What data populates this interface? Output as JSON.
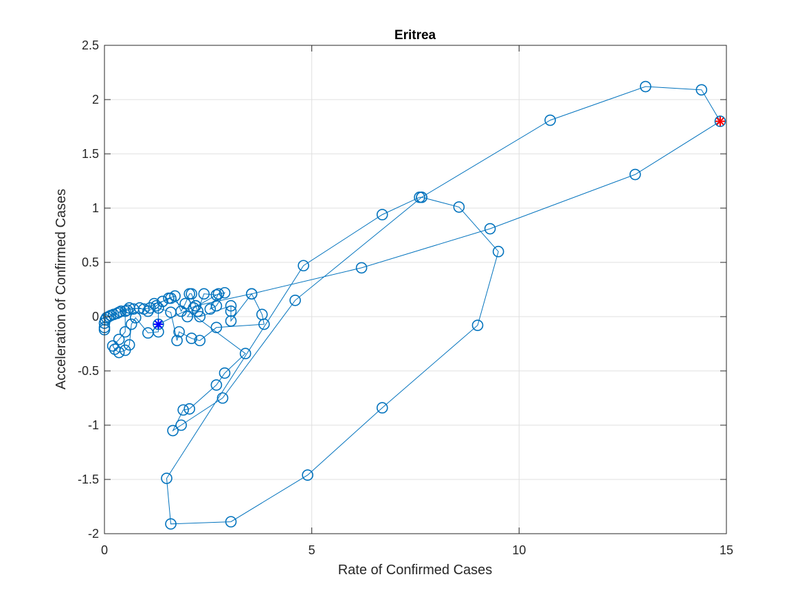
{
  "chart_data": {
    "type": "line",
    "title": "Eritrea",
    "xlabel": "Rate of Confirmed Cases",
    "ylabel": "Acceleration of Confirmed Cases",
    "xlim": [
      0,
      15
    ],
    "ylim": [
      -2,
      2.5
    ],
    "xticks": [
      0,
      5,
      10,
      15
    ],
    "xtick_labels": [
      "0",
      "5",
      "10",
      "15"
    ],
    "yticks": [
      -2,
      -1.5,
      -1,
      -0.5,
      0,
      0.5,
      1,
      1.5,
      2,
      2.5
    ],
    "ytick_labels": [
      "-2",
      "-1.5",
      "-1",
      "-0.5",
      "0",
      "0.5",
      "1",
      "1.5",
      "2",
      "2.5"
    ],
    "grid": true,
    "legend": "none",
    "series": [
      {
        "marker": "circle",
        "color": "#0072BD",
        "points": [
          [
            0,
            -0.12
          ],
          [
            0,
            -0.1
          ],
          [
            0,
            -0.06
          ],
          [
            0.02,
            -0.03
          ],
          [
            0.05,
            -0.01
          ],
          [
            0.1,
            0
          ],
          [
            0.15,
            0.01
          ],
          [
            0.22,
            0.02
          ],
          [
            0.3,
            0.03
          ],
          [
            0.4,
            0.05
          ],
          [
            0.55,
            0.06
          ],
          [
            0.7,
            0.07
          ],
          [
            0.85,
            0.08
          ],
          [
            1.05,
            0.05
          ],
          [
            1.25,
            0.1
          ],
          [
            1.4,
            0.14
          ],
          [
            1.55,
            0.17
          ],
          [
            1.7,
            0.19
          ],
          [
            1.85,
            0.05
          ],
          [
            1.95,
            0.12
          ],
          [
            2.05,
            0.21
          ],
          [
            2.1,
            0.21
          ],
          [
            2.2,
            0.1
          ],
          [
            2.25,
            0.05
          ],
          [
            2.4,
            0.21
          ],
          [
            2.7,
            0.2
          ],
          [
            2.9,
            0.22
          ],
          [
            2.7,
            0.1
          ],
          [
            2.55,
            0.07
          ],
          [
            2.75,
            0.21
          ],
          [
            2.15,
            0.08
          ],
          [
            2.0,
            0.0
          ],
          [
            2.3,
            0.0
          ],
          [
            3.05,
            0.1
          ],
          [
            3.05,
            0.05
          ],
          [
            3.05,
            -0.04
          ],
          [
            3.55,
            0.21
          ],
          [
            3.8,
            0.02
          ],
          [
            3.85,
            -0.07
          ],
          [
            2.7,
            -0.1
          ],
          [
            2.3,
            -0.22
          ],
          [
            2.1,
            -0.2
          ],
          [
            1.8,
            -0.14
          ],
          [
            1.75,
            -0.22
          ],
          [
            1.6,
            0.04
          ],
          [
            1.3,
            0.08
          ],
          [
            1.3,
            -0.14
          ],
          [
            1.05,
            -0.15
          ],
          [
            0.75,
            -0.01
          ],
          [
            0.65,
            -0.07
          ],
          [
            0.6,
            -0.26
          ],
          [
            0.5,
            -0.31
          ],
          [
            0.35,
            -0.33
          ],
          [
            0.25,
            -0.3
          ],
          [
            0.2,
            -0.27
          ],
          [
            0.35,
            -0.21
          ],
          [
            0.5,
            -0.14
          ],
          [
            0.5,
            0.05
          ],
          [
            0.35,
            0.04
          ],
          [
            0.6,
            0.08
          ],
          [
            0.95,
            0.07
          ],
          [
            1.1,
            0.08
          ],
          [
            1.2,
            0.12
          ],
          [
            1.4,
            0.14
          ],
          [
            1.6,
            0.17
          ],
          [
            3.4,
            -0.34
          ],
          [
            2.9,
            -0.52
          ],
          [
            2.7,
            -0.63
          ],
          [
            2.05,
            -0.85
          ],
          [
            1.9,
            -0.86
          ],
          [
            1.65,
            -1.05
          ],
          [
            1.85,
            -1.0
          ],
          [
            2.85,
            -0.75
          ],
          [
            4.6,
            0.15
          ],
          [
            7.65,
            1.1
          ],
          [
            7.6,
            1.1
          ],
          [
            6.7,
            0.94
          ],
          [
            4.8,
            0.47
          ],
          [
            1.5,
            -1.49
          ],
          [
            1.6,
            -1.91
          ],
          [
            3.05,
            -1.89
          ],
          [
            4.9,
            -1.46
          ],
          [
            6.7,
            -0.84
          ],
          [
            9.0,
            -0.08
          ],
          [
            9.5,
            0.6
          ],
          [
            8.55,
            1.01
          ],
          [
            7.65,
            1.1
          ],
          [
            10.75,
            1.81
          ],
          [
            13.05,
            2.12
          ],
          [
            14.4,
            2.09
          ],
          [
            14.85,
            1.8
          ],
          [
            12.8,
            1.31
          ],
          [
            9.3,
            0.81
          ],
          [
            6.2,
            0.45
          ],
          [
            3.55,
            0.21
          ],
          [
            2.2,
            0.1
          ],
          [
            1.3,
            -0.07
          ]
        ]
      }
    ],
    "annotations": [
      {
        "label": "start",
        "marker": "star",
        "color": "#FF0000",
        "x": 14.85,
        "y": 1.8
      },
      {
        "label": "end",
        "marker": "star",
        "color": "#0000FF",
        "x": 1.3,
        "y": -0.07
      }
    ]
  }
}
